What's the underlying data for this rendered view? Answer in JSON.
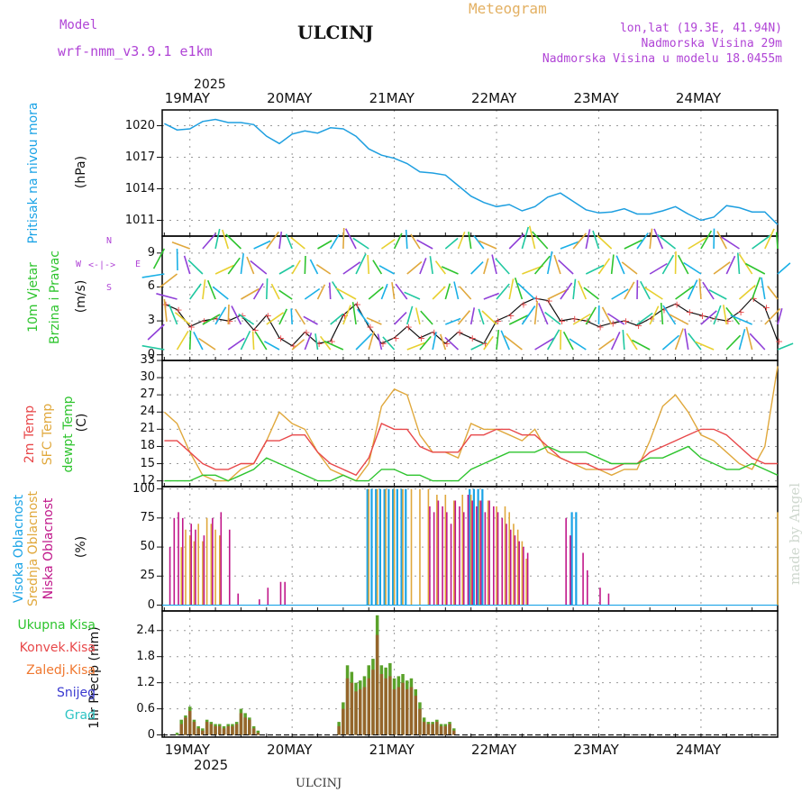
{
  "header": {
    "model_label": "Model",
    "model_name": "wrf-nmm_v3.9.1 e1km",
    "station": "ULCINJ",
    "meteogram": "Meteogram",
    "lonlat": "lon,lat (19.3E, 41.94N)",
    "elevation": "Nadmorska Visina 29m",
    "model_elevation": "Nadmorska Visina u modelu 18.0455m"
  },
  "footer": {
    "station": "ULCINJ",
    "made_by": "made by Angel"
  },
  "colors": {
    "pressure": "#1e9fe0",
    "t2m": "#e8484a",
    "sfc": "#e0a83c",
    "dewpt": "#2ec42e",
    "high_cloud": "#1aa3e6",
    "mid_cloud": "#e0a83c",
    "low_cloud": "#c0178a",
    "precip_total": "#5aa22a",
    "precip_conv": "#a05a2c",
    "wind_speed": "#111111"
  },
  "time_axis": {
    "year": "2025",
    "days": [
      "19MAY",
      "20MAY",
      "21MAY",
      "22MAY",
      "23MAY",
      "24MAY"
    ],
    "start_hour": -6.5,
    "end_hour": 138
  },
  "panels": {
    "pressure": {
      "title": "Pritisak na nivou mora",
      "unit": "(hPa)",
      "ticks": [
        "1020",
        "1017",
        "1014",
        "1011"
      ]
    },
    "wind": {
      "title1": "10m Vjetar",
      "title2": "Brzina i Pravac",
      "unit": "(m/s)",
      "ticks": [
        "9",
        "6",
        "3",
        "0"
      ],
      "rose_n": "N",
      "rose_s": "S",
      "rose_w": "W",
      "rose_e": "E"
    },
    "temp": {
      "label_t2m": "2m Temp",
      "label_sfc": "SFC Temp",
      "label_dew": "dewpt Temp",
      "unit": "(C)",
      "ticks": [
        "33",
        "30",
        "27",
        "24",
        "21",
        "18",
        "15",
        "12"
      ]
    },
    "cloud": {
      "label_high": "Visoka Oblacnost",
      "label_mid": "Srednja Oblacnost",
      "label_low": "Niska Oblacnost",
      "unit": "(%)",
      "ticks": [
        "100",
        "75",
        "50",
        "25",
        "0"
      ]
    },
    "precip": {
      "unit": "1hr Precip (mm)",
      "ticks": [
        "2.4",
        "1.8",
        "1.2",
        "0.6",
        "0"
      ],
      "legend": [
        "Ukupna Kisa",
        "Konvek.Kisa",
        "Zaledj.Kisa",
        "Snijeg",
        "Grad"
      ],
      "legend_colors": [
        "#2ec42e",
        "#e8484a",
        "#f07830",
        "#3a3ad0",
        "#2ec4c4"
      ]
    }
  },
  "chart_data": [
    {
      "type": "line",
      "title": "Pritisak na nivou mora",
      "ylabel": "(hPa)",
      "ylim": [
        1009.5,
        1021.5
      ],
      "x_unit": "hours since 19MAY 00",
      "series": [
        {
          "name": "Pritisak na nivou mora",
          "x": [
            -6,
            -3,
            0,
            3,
            6,
            9,
            12,
            15,
            18,
            21,
            24,
            27,
            30,
            33,
            36,
            39,
            42,
            45,
            48,
            51,
            54,
            57,
            60,
            63,
            66,
            69,
            72,
            75,
            78,
            81,
            84,
            87,
            90,
            93,
            96,
            99,
            102,
            105,
            108,
            111,
            114,
            117,
            120,
            123,
            126,
            129,
            132,
            135,
            138
          ],
          "y": [
            1020.2,
            1019.6,
            1019.7,
            1020.4,
            1020.6,
            1020.3,
            1020.3,
            1020.1,
            1019.0,
            1018.3,
            1019.2,
            1019.5,
            1019.3,
            1019.8,
            1019.7,
            1019.0,
            1017.8,
            1017.2,
            1016.9,
            1016.4,
            1015.6,
            1015.5,
            1015.3,
            1014.3,
            1013.3,
            1012.7,
            1012.3,
            1012.5,
            1011.9,
            1012.3,
            1013.2,
            1013.6,
            1012.8,
            1012.0,
            1011.7,
            1011.8,
            1012.1,
            1011.6,
            1011.6,
            1011.9,
            1012.3,
            1011.6,
            1011.0,
            1011.3,
            1012.4,
            1012.2,
            1011.8,
            1011.8,
            1010.6
          ]
        }
      ]
    },
    {
      "type": "line",
      "title": "10m Vjetar Brzina i Pravac",
      "ylabel": "(m/s)",
      "ylim": [
        -0.5,
        10.5
      ],
      "x_unit": "hours since 19MAY 00",
      "series": [
        {
          "name": "10m Vjetar",
          "x": [
            -6,
            -3,
            0,
            3,
            6,
            9,
            12,
            15,
            18,
            21,
            24,
            27,
            30,
            33,
            36,
            39,
            42,
            45,
            48,
            51,
            54,
            57,
            60,
            63,
            66,
            69,
            72,
            75,
            78,
            81,
            84,
            87,
            90,
            93,
            96,
            99,
            102,
            105,
            108,
            111,
            114,
            117,
            120,
            123,
            126,
            129,
            132,
            135,
            138
          ],
          "y": [
            4.5,
            4.0,
            2.5,
            3.0,
            3.2,
            3.0,
            3.5,
            2.2,
            3.5,
            1.5,
            0.8,
            2.0,
            1.0,
            1.2,
            3.5,
            4.5,
            2.5,
            1.0,
            1.5,
            2.5,
            1.5,
            2.0,
            1.0,
            2.0,
            1.5,
            1.0,
            3.0,
            3.5,
            4.5,
            5.0,
            4.8,
            3.0,
            3.2,
            3.0,
            2.5,
            2.8,
            3.0,
            2.6,
            3.2,
            4.0,
            4.5,
            3.8,
            3.5,
            3.2,
            3.0,
            3.8,
            5.0,
            4.2,
            1.2
          ]
        }
      ]
    },
    {
      "type": "line",
      "title": "2m Temp / SFC Temp / dewpt Temp",
      "ylabel": "(C)",
      "ylim": [
        11,
        33
      ],
      "x_unit": "hours since 19MAY 00",
      "series": [
        {
          "name": "2m Temp",
          "x": [
            -6,
            -3,
            0,
            3,
            6,
            9,
            12,
            15,
            18,
            21,
            24,
            27,
            30,
            33,
            36,
            39,
            42,
            45,
            48,
            51,
            54,
            57,
            60,
            63,
            66,
            69,
            72,
            75,
            78,
            81,
            84,
            87,
            90,
            93,
            96,
            99,
            102,
            105,
            108,
            111,
            114,
            117,
            120,
            123,
            126,
            129,
            132,
            135,
            138
          ],
          "y": [
            19,
            19,
            17,
            15,
            14,
            14,
            15,
            15,
            19,
            19,
            20,
            20,
            17,
            15,
            14,
            13,
            16,
            22,
            21,
            21,
            18,
            17,
            17,
            17,
            20,
            20,
            21,
            21,
            20,
            20,
            18,
            16,
            15,
            15,
            14,
            14,
            15,
            15,
            17,
            18,
            19,
            20,
            21,
            21,
            20,
            18,
            16,
            15,
            15
          ]
        },
        {
          "name": "SFC Temp",
          "x": [
            -6,
            -3,
            0,
            3,
            6,
            9,
            12,
            15,
            18,
            21,
            24,
            27,
            30,
            33,
            36,
            39,
            42,
            45,
            48,
            51,
            54,
            57,
            60,
            63,
            66,
            69,
            72,
            75,
            78,
            81,
            84,
            87,
            90,
            93,
            96,
            99,
            102,
            105,
            108,
            111,
            114,
            117,
            120,
            123,
            126,
            129,
            132,
            135,
            138
          ],
          "y": [
            24,
            22,
            17,
            13,
            12,
            12,
            14,
            15,
            19,
            24,
            22,
            21,
            17,
            14,
            13,
            12,
            15,
            25,
            28,
            27,
            20,
            17,
            17,
            16,
            22,
            21,
            21,
            20,
            19,
            21,
            17,
            16,
            15,
            14,
            14,
            13,
            14,
            14,
            19,
            25,
            27,
            24,
            20,
            19,
            17,
            15,
            14,
            18,
            32
          ]
        },
        {
          "name": "dewpt Temp",
          "x": [
            -6,
            -3,
            0,
            3,
            6,
            9,
            12,
            15,
            18,
            21,
            24,
            27,
            30,
            33,
            36,
            39,
            42,
            45,
            48,
            51,
            54,
            57,
            60,
            63,
            66,
            69,
            72,
            75,
            78,
            81,
            84,
            87,
            90,
            93,
            96,
            99,
            102,
            105,
            108,
            111,
            114,
            117,
            120,
            123,
            126,
            129,
            132,
            135,
            138
          ],
          "y": [
            12,
            12,
            12,
            13,
            13,
            12,
            13,
            14,
            16,
            15,
            14,
            13,
            12,
            12,
            13,
            12,
            12,
            14,
            14,
            13,
            13,
            12,
            12,
            12,
            14,
            15,
            16,
            17,
            17,
            17,
            18,
            17,
            17,
            17,
            16,
            15,
            15,
            15,
            16,
            16,
            17,
            18,
            16,
            15,
            14,
            14,
            15,
            14,
            13
          ]
        }
      ]
    },
    {
      "type": "bar",
      "title": "Oblacnost",
      "ylabel": "(%)",
      "ylim": [
        -5,
        102
      ],
      "x_unit": "hours since 19MAY 00",
      "series": [
        {
          "name": "Visoka Oblacnost",
          "x": [
            42,
            43,
            44,
            45,
            46,
            47,
            48,
            49,
            50,
            51,
            66,
            67,
            68,
            69,
            90,
            91
          ],
          "values": [
            100,
            100,
            100,
            100,
            100,
            100,
            100,
            100,
            100,
            100,
            100,
            100,
            100,
            100,
            80,
            80
          ]
        },
        {
          "name": "Srednja Oblacnost",
          "x": [
            -2,
            -1,
            0,
            1,
            2,
            3,
            4,
            5,
            6,
            7,
            42,
            44,
            46,
            48,
            50,
            52,
            54,
            56,
            58,
            60,
            62,
            64,
            66,
            68,
            70,
            72,
            74,
            75,
            76,
            77,
            78,
            79,
            138
          ],
          "values": [
            50,
            65,
            60,
            55,
            70,
            55,
            75,
            70,
            65,
            60,
            100,
            100,
            100,
            100,
            100,
            100,
            100,
            100,
            95,
            95,
            90,
            95,
            95,
            90,
            90,
            85,
            85,
            80,
            70,
            65,
            55,
            40,
            80
          ]
        },
        {
          "name": "Niska Oblacnost",
          "x": [
            -5,
            -4,
            -3,
            -2,
            0,
            1,
            3,
            5,
            7,
            9,
            11,
            16,
            18,
            21,
            22,
            56,
            57,
            58,
            59,
            60,
            61,
            62,
            63,
            64,
            65,
            66,
            67,
            68,
            69,
            70,
            71,
            72,
            73,
            74,
            75,
            76,
            77,
            78,
            79,
            88,
            89,
            92,
            93,
            96,
            98
          ],
          "values": [
            50,
            75,
            80,
            75,
            70,
            65,
            60,
            75,
            80,
            65,
            10,
            5,
            15,
            20,
            20,
            85,
            80,
            90,
            85,
            80,
            70,
            90,
            85,
            80,
            95,
            90,
            85,
            90,
            80,
            90,
            85,
            80,
            75,
            70,
            65,
            60,
            55,
            50,
            45,
            75,
            60,
            45,
            30,
            15,
            10
          ]
        }
      ]
    },
    {
      "type": "bar",
      "title": "1hr Precip",
      "ylabel": "1hr Precip (mm)",
      "ylim": [
        -0.05,
        2.85
      ],
      "x_unit": "hours since 19MAY 00",
      "series": [
        {
          "name": "Ukupna Kisa",
          "x": [
            -3,
            -2,
            -1,
            0,
            1,
            2,
            3,
            4,
            5,
            6,
            7,
            8,
            9,
            10,
            11,
            12,
            13,
            14,
            15,
            16,
            35,
            36,
            37,
            38,
            39,
            40,
            41,
            42,
            43,
            44,
            45,
            46,
            47,
            48,
            49,
            50,
            51,
            52,
            53,
            54,
            55,
            56,
            57,
            58,
            59,
            60,
            61,
            62
          ],
          "values": [
            0.05,
            0.35,
            0.45,
            0.65,
            0.35,
            0.2,
            0.15,
            0.35,
            0.3,
            0.25,
            0.25,
            0.2,
            0.25,
            0.25,
            0.3,
            0.6,
            0.5,
            0.4,
            0.2,
            0.1,
            0.3,
            0.75,
            1.6,
            1.45,
            1.2,
            1.25,
            1.35,
            1.6,
            1.75,
            2.75,
            1.6,
            1.55,
            1.65,
            1.3,
            1.35,
            1.4,
            1.25,
            1.3,
            1.05,
            0.75,
            0.4,
            0.3,
            0.3,
            0.35,
            0.25,
            0.25,
            0.3,
            0.15
          ]
        },
        {
          "name": "Konvek.Kisa",
          "x": [
            -2,
            -1,
            0,
            1,
            2,
            3,
            4,
            5,
            6,
            7,
            8,
            9,
            10,
            11,
            12,
            13,
            14,
            15,
            16,
            35,
            36,
            37,
            38,
            39,
            40,
            41,
            42,
            43,
            44,
            45,
            46,
            47,
            48,
            49,
            50,
            51,
            52,
            53,
            54,
            55,
            56,
            57,
            58,
            59,
            60,
            61,
            62
          ],
          "values": [
            0.25,
            0.4,
            0.55,
            0.3,
            0.15,
            0.1,
            0.3,
            0.25,
            0.2,
            0.2,
            0.15,
            0.2,
            0.2,
            0.25,
            0.5,
            0.4,
            0.35,
            0.15,
            0.05,
            0.2,
            0.6,
            1.3,
            1.2,
            1.0,
            1.05,
            1.1,
            1.3,
            1.5,
            2.3,
            1.4,
            1.3,
            1.35,
            1.05,
            1.1,
            1.2,
            1.05,
            1.1,
            0.9,
            0.6,
            0.3,
            0.25,
            0.25,
            0.3,
            0.2,
            0.2,
            0.25,
            0.1
          ]
        }
      ]
    }
  ]
}
